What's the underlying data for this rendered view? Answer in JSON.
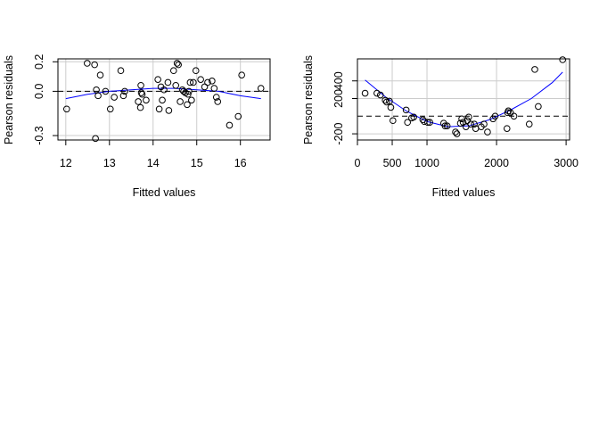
{
  "chart_data": [
    {
      "type": "scatter",
      "title": "",
      "xlabel": "Fitted values",
      "ylabel": "Pearson residuals",
      "xlim": [
        11.82,
        16.68
      ],
      "ylim": [
        -0.33,
        0.22
      ],
      "x_ticks": [
        12,
        13,
        14,
        15,
        16
      ],
      "x_tick_labels": [
        "12",
        "13",
        "14",
        "15",
        "16"
      ],
      "y_ticks": [
        -0.3,
        0.0,
        0.2
      ],
      "y_tick_labels": [
        "-0.3",
        "0.0",
        "0.2"
      ],
      "grid": true,
      "reference_line": 0.0,
      "colors": {
        "points": "#000000",
        "smooth": "#0000ff",
        "grid": "#cccccc",
        "reference": "#000000"
      },
      "series": [
        {
          "kind": "points",
          "x": [
            12.02,
            12.49,
            12.66,
            12.68,
            12.7,
            12.74,
            12.79,
            12.91,
            13.02,
            13.11,
            13.26,
            13.32,
            13.35,
            13.66,
            13.71,
            13.72,
            13.73,
            13.75,
            13.84,
            14.11,
            14.14,
            14.18,
            14.21,
            14.25,
            14.34,
            14.36,
            14.47,
            14.52,
            14.55,
            14.58,
            14.62,
            14.67,
            14.7,
            14.74,
            14.78,
            14.8,
            14.82,
            14.85,
            14.88,
            14.92,
            14.98,
            15.09,
            15.18,
            15.25,
            15.35,
            15.4,
            15.45,
            15.48,
            15.75,
            15.95,
            16.03,
            16.47
          ],
          "y": [
            -0.12,
            0.19,
            0.18,
            -0.32,
            0.01,
            -0.03,
            0.11,
            0.0,
            -0.12,
            -0.04,
            0.14,
            -0.03,
            0.0,
            -0.07,
            -0.11,
            0.04,
            -0.01,
            -0.02,
            -0.06,
            0.08,
            -0.12,
            0.03,
            -0.06,
            0.01,
            0.06,
            -0.13,
            0.14,
            0.04,
            0.19,
            0.18,
            -0.07,
            0.01,
            0.0,
            -0.01,
            -0.09,
            -0.02,
            0.0,
            0.06,
            -0.06,
            0.06,
            0.14,
            0.08,
            0.03,
            0.06,
            0.07,
            0.02,
            -0.04,
            -0.07,
            -0.23,
            -0.17,
            0.11,
            0.02
          ]
        },
        {
          "kind": "smooth_curve",
          "x": [
            12.0,
            12.5,
            13.0,
            13.5,
            14.0,
            14.5,
            15.0,
            15.5,
            16.0,
            16.47
          ],
          "y": [
            -0.05,
            -0.02,
            0.0,
            0.01,
            0.02,
            0.02,
            0.01,
            0.0,
            -0.03,
            -0.05
          ]
        }
      ]
    },
    {
      "type": "scatter",
      "title": "",
      "xlabel": "Fitted values",
      "ylabel": "Pearson residuals",
      "xlim": [
        0,
        3050
      ],
      "ylim": [
        -270,
        650
      ],
      "x_ticks": [
        0,
        500,
        1000,
        2000,
        3000
      ],
      "x_tick_labels": [
        "0",
        "500",
        "1000",
        "2000",
        "3000"
      ],
      "y_ticks": [
        -200,
        200,
        400
      ],
      "y_tick_labels": [
        "-200",
        "200",
        "400"
      ],
      "grid": true,
      "reference_line": 0,
      "colors": {
        "points": "#000000",
        "smooth": "#0000ff",
        "grid": "#cccccc",
        "reference": "#000000"
      },
      "series": [
        {
          "kind": "points",
          "x": [
            110,
            280,
            330,
            400,
            420,
            460,
            480,
            510,
            700,
            720,
            780,
            810,
            940,
            960,
            1010,
            1040,
            1240,
            1260,
            1290,
            1410,
            1430,
            1480,
            1500,
            1520,
            1560,
            1580,
            1600,
            1630,
            1680,
            1700,
            1780,
            1820,
            1870,
            1950,
            1980,
            2150,
            2160,
            2170,
            2200,
            2250,
            2470,
            2550,
            2600,
            2950
          ],
          "y": [
            260,
            260,
            240,
            180,
            160,
            170,
            100,
            -50,
            70,
            -70,
            -20,
            -10,
            -40,
            -60,
            -70,
            -70,
            -80,
            -110,
            -110,
            -180,
            -200,
            -80,
            -30,
            -70,
            -120,
            -50,
            -10,
            -90,
            -90,
            -140,
            -120,
            -90,
            -180,
            -30,
            0,
            -140,
            40,
            60,
            40,
            0,
            -90,
            530,
            110,
            640
          ]
        },
        {
          "kind": "smooth_curve",
          "x": [
            110,
            400,
            700,
            1000,
            1300,
            1600,
            1900,
            2200,
            2500,
            2800,
            2950
          ],
          "y": [
            410,
            220,
            60,
            -60,
            -120,
            -110,
            -40,
            70,
            200,
            380,
            500
          ]
        }
      ]
    }
  ]
}
